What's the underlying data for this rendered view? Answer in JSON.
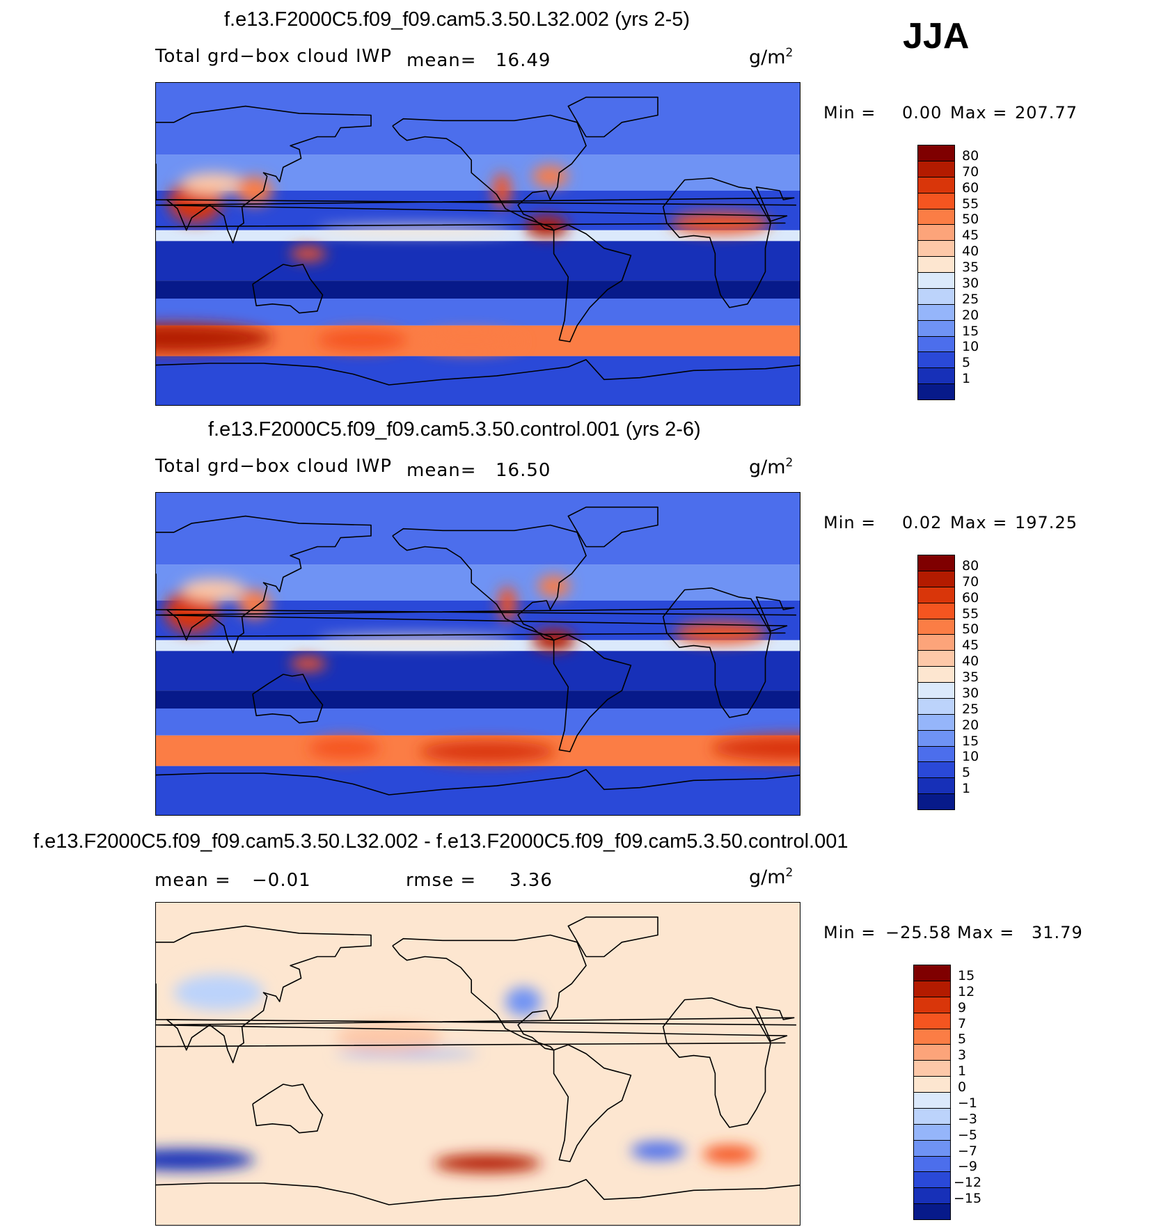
{
  "season": "JJA",
  "panels": [
    {
      "title": "f.e13.F2000C5.f09_f09.cam5.3.50.L32.002 (yrs 2-5)",
      "variable": "Total grd−box cloud IWP",
      "stat1_label": "mean=",
      "stat1_value": "16.49",
      "stat2_label": "",
      "stat2_value": "",
      "units_base": "g/m",
      "units_exp": "2",
      "min_label": "Min =",
      "min_value": "0.00",
      "max_label": "Max =",
      "max_value": "207.77",
      "colorbar": {
        "labels": [
          "80",
          "70",
          "60",
          "55",
          "50",
          "45",
          "40",
          "35",
          "30",
          "25",
          "20",
          "15",
          "10",
          "5",
          "1"
        ],
        "colors": [
          "#7f0000",
          "#b31b00",
          "#d9360a",
          "#f55520",
          "#fb7d45",
          "#fca47a",
          "#fdc8a8",
          "#fde6d0",
          "#dbe9fb",
          "#bcd3fb",
          "#95b5fa",
          "#6f93f4",
          "#4c6eec",
          "#2a49d8",
          "#1730b8",
          "#071a8a"
        ]
      },
      "map": {
        "palette": "positive",
        "bands": [
          {
            "lat_min": 50,
            "lat_max": 90,
            "level": 3
          },
          {
            "lat_min": 30,
            "lat_max": 50,
            "level": 4
          },
          {
            "lat_min": 8,
            "lat_max": 30,
            "level": 2
          },
          {
            "lat_min": 2,
            "lat_max": 8,
            "level": 7
          },
          {
            "lat_min": -20,
            "lat_max": 2,
            "level": 1
          },
          {
            "lat_min": -30,
            "lat_max": -20,
            "level": 0
          },
          {
            "lat_min": -45,
            "lat_max": -30,
            "level": 3
          },
          {
            "lat_min": -62,
            "lat_max": -45,
            "level": 11
          },
          {
            "lat_min": -90,
            "lat_max": -62,
            "level": 2
          }
        ],
        "features": [
          {
            "label": "south-indian-storm-track",
            "lon": 70,
            "lat": -52,
            "rx": 55,
            "ry": 8,
            "level": 14
          },
          {
            "label": "south-pacific-storm-track",
            "lon": 175,
            "lat": -53,
            "rx": 25,
            "ry": 6,
            "level": 12
          },
          {
            "label": "south-atlantic-storm-track",
            "lon": 235,
            "lat": -54,
            "rx": 30,
            "ry": 6,
            "level": 11
          },
          {
            "label": "india-monsoon",
            "lon": 82,
            "lat": 24,
            "rx": 15,
            "ry": 12,
            "level": 13
          },
          {
            "label": "tibet",
            "lon": 92,
            "lat": 34,
            "rx": 18,
            "ry": 6,
            "level": 9
          },
          {
            "label": "sahel",
            "lon": 15,
            "lat": 12,
            "rx": 28,
            "ry": 6,
            "level": 12
          },
          {
            "label": "east-china",
            "lon": 115,
            "lat": 30,
            "rx": 10,
            "ry": 8,
            "level": 11
          },
          {
            "label": "maritime-continent",
            "lon": 145,
            "lat": -5,
            "rx": 10,
            "ry": 4,
            "level": 12
          },
          {
            "label": "central-america",
            "lon": 278,
            "lat": 10,
            "rx": 12,
            "ry": 6,
            "level": 14
          },
          {
            "label": "north-america-east",
            "lon": 280,
            "lat": 38,
            "rx": 10,
            "ry": 6,
            "level": 11
          },
          {
            "label": "rockies",
            "lon": 253,
            "lat": 30,
            "rx": 5,
            "ry": 10,
            "level": 12
          },
          {
            "label": "itcz-pacific",
            "lon": 205,
            "lat": 8,
            "rx": 55,
            "ry": 2.5,
            "level": 8
          }
        ]
      }
    },
    {
      "title": "f.e13.F2000C5.f09_f09.cam5.3.50.control.001 (yrs 2-6)",
      "variable": "Total grd−box cloud IWP",
      "stat1_label": "mean=",
      "stat1_value": "16.50",
      "stat2_label": "",
      "stat2_value": "",
      "units_base": "g/m",
      "units_exp": "2",
      "min_label": "Min =",
      "min_value": "0.02",
      "max_label": "Max =",
      "max_value": "197.25",
      "colorbar": {
        "labels": [
          "80",
          "70",
          "60",
          "55",
          "50",
          "45",
          "40",
          "35",
          "30",
          "25",
          "20",
          "15",
          "10",
          "5",
          "1"
        ],
        "colors": [
          "#7f0000",
          "#b31b00",
          "#d9360a",
          "#f55520",
          "#fb7d45",
          "#fca47a",
          "#fdc8a8",
          "#fde6d0",
          "#dbe9fb",
          "#bcd3fb",
          "#95b5fa",
          "#6f93f4",
          "#4c6eec",
          "#2a49d8",
          "#1730b8",
          "#071a8a"
        ]
      },
      "map": {
        "palette": "positive",
        "bands": [
          {
            "lat_min": 50,
            "lat_max": 90,
            "level": 3
          },
          {
            "lat_min": 30,
            "lat_max": 50,
            "level": 4
          },
          {
            "lat_min": 8,
            "lat_max": 30,
            "level": 2
          },
          {
            "lat_min": 2,
            "lat_max": 8,
            "level": 7
          },
          {
            "lat_min": -20,
            "lat_max": 2,
            "level": 1
          },
          {
            "lat_min": -30,
            "lat_max": -20,
            "level": 0
          },
          {
            "lat_min": -45,
            "lat_max": -30,
            "level": 3
          },
          {
            "lat_min": -62,
            "lat_max": -45,
            "level": 11
          },
          {
            "lat_min": -90,
            "lat_max": -62,
            "level": 2
          }
        ],
        "features": [
          {
            "label": "south-indian-storm-track",
            "lon": 55,
            "lat": -52,
            "rx": 45,
            "ry": 7,
            "level": 13
          },
          {
            "label": "south-pacific-storm-track",
            "lon": 165,
            "lat": -52,
            "rx": 20,
            "ry": 6,
            "level": 12
          },
          {
            "label": "south-atlantic-storm-track",
            "lon": 245,
            "lat": -54,
            "rx": 38,
            "ry": 6,
            "level": 13
          },
          {
            "label": "india-monsoon",
            "lon": 80,
            "lat": 24,
            "rx": 15,
            "ry": 12,
            "level": 13
          },
          {
            "label": "tibet",
            "lon": 92,
            "lat": 36,
            "rx": 18,
            "ry": 6,
            "level": 9
          },
          {
            "label": "sahel",
            "lon": 15,
            "lat": 12,
            "rx": 26,
            "ry": 6,
            "level": 12
          },
          {
            "label": "east-china",
            "lon": 115,
            "lat": 28,
            "rx": 9,
            "ry": 8,
            "level": 11
          },
          {
            "label": "maritime-continent",
            "lon": 145,
            "lat": -5,
            "rx": 10,
            "ry": 4,
            "level": 12
          },
          {
            "label": "central-america",
            "lon": 282,
            "lat": 8,
            "rx": 12,
            "ry": 6,
            "level": 14
          },
          {
            "label": "north-america-east",
            "lon": 282,
            "lat": 38,
            "rx": 9,
            "ry": 6,
            "level": 11
          },
          {
            "label": "rockies",
            "lon": 256,
            "lat": 28,
            "rx": 5,
            "ry": 10,
            "level": 12
          },
          {
            "label": "itcz-pacific",
            "lon": 205,
            "lat": 8,
            "rx": 55,
            "ry": 2.5,
            "level": 8
          }
        ]
      }
    },
    {
      "title": "f.e13.F2000C5.f09_f09.cam5.3.50.L32.002 - f.e13.F2000C5.f09_f09.cam5.3.50.control.001",
      "variable": "",
      "stat1_label": "mean =",
      "stat1_value": "−0.01",
      "stat2_label": "rmse =",
      "stat2_value": "3.36",
      "units_base": "g/m",
      "units_exp": "2",
      "min_label": "Min =",
      "min_value": "−25.58",
      "max_label": "Max =",
      "max_value": "31.79",
      "colorbar": {
        "labels": [
          "15",
          "12",
          "9",
          "7",
          "5",
          "3",
          "1",
          "0",
          "−1",
          "−3",
          "−5",
          "−7",
          "−9",
          "−12",
          "−15"
        ],
        "colors": [
          "#7f0000",
          "#b31b00",
          "#d9360a",
          "#f55520",
          "#fb7d45",
          "#fca47a",
          "#fdc8a8",
          "#fde6d0",
          "#dbe9fb",
          "#bcd3fb",
          "#95b5fa",
          "#6f93f4",
          "#4c6eec",
          "#2a49d8",
          "#1730b8",
          "#071a8a"
        ]
      },
      "map": {
        "palette": "difference",
        "bands": [
          {
            "lat_min": -90,
            "lat_max": 90,
            "level": 8
          }
        ],
        "features": [
          {
            "label": "south-indian-positive",
            "lon": 75,
            "lat": -53,
            "rx": 40,
            "ry": 6,
            "level": 1
          },
          {
            "label": "south-atlantic-negative",
            "lon": 245,
            "lat": -55,
            "rx": 30,
            "ry": 5,
            "level": 14
          },
          {
            "label": "southwest-indian-negative",
            "lon": 20,
            "lat": -50,
            "rx": 15,
            "ry": 5,
            "level": 12
          },
          {
            "label": "east-atlantic-positive",
            "lon": 340,
            "lat": -48,
            "rx": 15,
            "ry": 5,
            "level": 3
          },
          {
            "label": "north-america-mixed",
            "lon": 265,
            "lat": 35,
            "rx": 10,
            "ry": 8,
            "level": 4
          },
          {
            "label": "asia-positive",
            "lon": 95,
            "lat": 40,
            "rx": 25,
            "ry": 10,
            "level": 6
          },
          {
            "label": "itcz-positive",
            "lon": 200,
            "lat": 6,
            "rx": 40,
            "ry": 2,
            "level": 5
          },
          {
            "label": "pacific-negative",
            "lon": 190,
            "lat": 15,
            "rx": 30,
            "ry": 8,
            "level": 9
          }
        ]
      }
    }
  ]
}
